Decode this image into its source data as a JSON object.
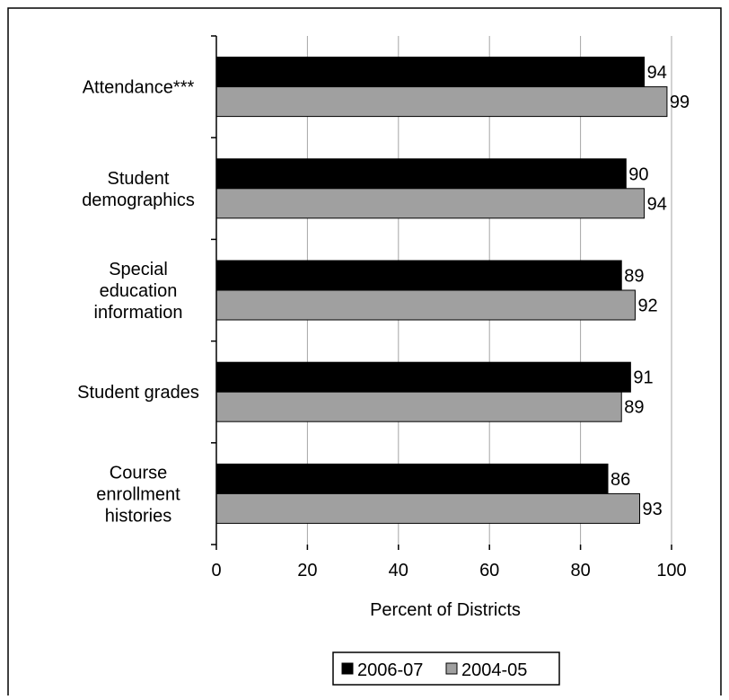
{
  "chart_data": {
    "type": "bar",
    "orientation": "horizontal",
    "categories": [
      [
        "Attendance***"
      ],
      [
        "Student",
        "demographics"
      ],
      [
        "Special",
        "education",
        "information"
      ],
      [
        "Student grades"
      ],
      [
        "Course",
        "enrollment",
        "histories"
      ]
    ],
    "series": [
      {
        "name": "2006-07",
        "color": "#000000",
        "values": [
          94,
          90,
          89,
          91,
          86
        ]
      },
      {
        "name": "2004-05",
        "color": "#a0a0a0",
        "values": [
          99,
          94,
          92,
          89,
          93
        ]
      }
    ],
    "xlabel": "Percent of Districts",
    "xlim": [
      0,
      100
    ],
    "xticks": [
      0,
      20,
      40,
      60,
      80,
      100
    ],
    "grid": "vertical",
    "legend": "bottom"
  }
}
